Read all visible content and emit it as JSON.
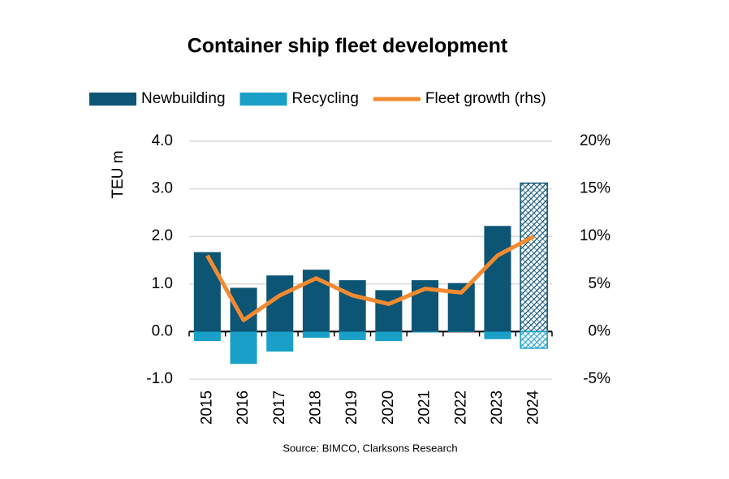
{
  "chart_data": {
    "type": "bar",
    "title": "Container ship fleet development",
    "y_label": "TEU m",
    "source": "Source: BIMCO, Clarksons Research",
    "categories": [
      "2015",
      "2016",
      "2017",
      "2018",
      "2019",
      "2020",
      "2021",
      "2022",
      "2023",
      "2024"
    ],
    "series": [
      {
        "name": "Newbuilding",
        "color": "#0d5574",
        "hatch_last": true,
        "values": [
          1.67,
          0.92,
          1.18,
          1.3,
          1.08,
          0.87,
          1.08,
          1.02,
          2.22,
          3.12
        ]
      },
      {
        "name": "Recycling",
        "color": "#1a9fc9",
        "hatch_last": true,
        "values": [
          -0.2,
          -0.68,
          -0.42,
          -0.13,
          -0.18,
          -0.2,
          -0.02,
          -0.01,
          -0.16,
          -0.35
        ]
      },
      {
        "name": "Fleet growth (rhs)",
        "type": "line",
        "axis": "y2",
        "color": "#f28a30",
        "values": [
          8.0,
          1.2,
          3.8,
          5.6,
          3.8,
          2.9,
          4.5,
          4.1,
          8.0,
          10.0
        ]
      }
    ],
    "ylim": [
      -1,
      4
    ],
    "yticks": [
      {
        "value": -1,
        "label": "-1.0"
      },
      {
        "value": 0,
        "label": "0.0"
      },
      {
        "value": 1,
        "label": "1.0"
      },
      {
        "value": 2,
        "label": "2.0"
      },
      {
        "value": 3,
        "label": "3.0"
      },
      {
        "value": 4,
        "label": "4.0"
      }
    ],
    "y2lim": [
      -5,
      20
    ],
    "y2ticks": [
      {
        "value": -5,
        "label": "-5%"
      },
      {
        "value": 0,
        "label": "0%"
      },
      {
        "value": 5,
        "label": "5%"
      },
      {
        "value": 10,
        "label": "10%"
      },
      {
        "value": 15,
        "label": "15%"
      },
      {
        "value": 20,
        "label": "20%"
      }
    ],
    "grid": true
  }
}
